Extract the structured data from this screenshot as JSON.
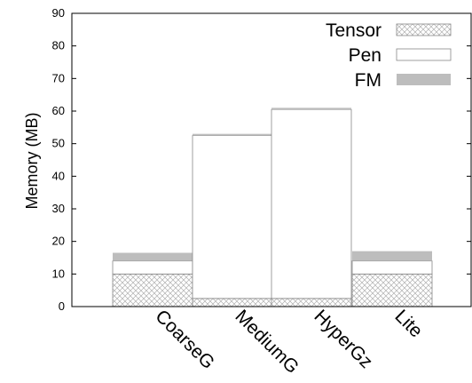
{
  "chart_data": {
    "type": "bar",
    "stacked": true,
    "categories": [
      "CoarseG",
      "MediumG",
      "HyperGz",
      "Lite"
    ],
    "series": [
      {
        "name": "Tensor",
        "values": [
          10,
          2.5,
          2.5,
          10
        ],
        "pattern": "crosshatch",
        "color": "#cccccc"
      },
      {
        "name": "Pen",
        "values": [
          4,
          50,
          58,
          4
        ],
        "pattern": "solid",
        "color": "#ffffff"
      },
      {
        "name": "FM",
        "values": [
          2.5,
          0.5,
          0.5,
          3
        ],
        "pattern": "solid",
        "color": "#bdbdbd"
      }
    ],
    "xlabel": "",
    "ylabel": "Memory (MB)",
    "ylim": [
      0,
      90
    ],
    "yticks": [
      0,
      10,
      20,
      30,
      40,
      50,
      60,
      70,
      80,
      90
    ],
    "grid": false,
    "legend_position": "top-right"
  }
}
